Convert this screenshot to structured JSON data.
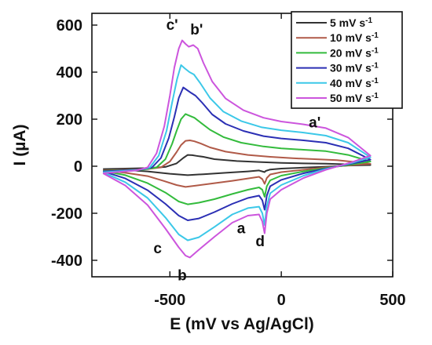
{
  "chart_data": {
    "type": "line",
    "title": "",
    "xlabel": "E (mV vs Ag/AgCl)",
    "ylabel": "I (µA)",
    "xlim": [
      -850,
      500
    ],
    "ylim": [
      -470,
      650
    ],
    "xticks": [
      -500,
      0,
      500
    ],
    "yticks": [
      600,
      400,
      200,
      0,
      -200,
      -400
    ],
    "grid": false,
    "legend_position": "top-right",
    "series": [
      {
        "name": "5 mV s-1",
        "unit_main": "5 mV s",
        "unit_exp": "-1",
        "color": "#333333",
        "forward": [
          [
            -800,
            -12
          ],
          [
            -600,
            -8
          ],
          [
            -520,
            -3
          ],
          [
            -470,
            12
          ],
          [
            -440,
            35
          ],
          [
            -420,
            48
          ],
          [
            -400,
            47
          ],
          [
            -380,
            44
          ],
          [
            -350,
            40
          ],
          [
            -300,
            30
          ],
          [
            -200,
            22
          ],
          [
            -100,
            18
          ],
          [
            0,
            14
          ],
          [
            100,
            12
          ],
          [
            200,
            11
          ],
          [
            300,
            8
          ],
          [
            400,
            5
          ]
        ],
        "reverse": [
          [
            400,
            5
          ],
          [
            300,
            3
          ],
          [
            200,
            -2
          ],
          [
            100,
            -6
          ],
          [
            0,
            -10
          ],
          [
            -50,
            -14
          ],
          [
            -70,
            -20
          ],
          [
            -75,
            -25
          ],
          [
            -100,
            -18
          ],
          [
            -150,
            -22
          ],
          [
            -250,
            -28
          ],
          [
            -350,
            -34
          ],
          [
            -420,
            -38
          ],
          [
            -500,
            -32
          ],
          [
            -600,
            -22
          ],
          [
            -700,
            -16
          ],
          [
            -800,
            -12
          ]
        ]
      },
      {
        "name": "10 mV s-1",
        "unit_main": "10 mV s",
        "unit_exp": "-1",
        "color": "#b05a48",
        "forward": [
          [
            -800,
            -18
          ],
          [
            -600,
            -12
          ],
          [
            -540,
            -5
          ],
          [
            -500,
            20
          ],
          [
            -470,
            60
          ],
          [
            -450,
            90
          ],
          [
            -430,
            108
          ],
          [
            -410,
            110
          ],
          [
            -390,
            106
          ],
          [
            -360,
            96
          ],
          [
            -320,
            80
          ],
          [
            -250,
            62
          ],
          [
            -150,
            48
          ],
          [
            -50,
            40
          ],
          [
            50,
            34
          ],
          [
            150,
            30
          ],
          [
            250,
            26
          ],
          [
            330,
            18
          ],
          [
            400,
            10
          ]
        ],
        "reverse": [
          [
            400,
            10
          ],
          [
            320,
            5
          ],
          [
            200,
            -5
          ],
          [
            100,
            -15
          ],
          [
            0,
            -25
          ],
          [
            -50,
            -35
          ],
          [
            -65,
            -50
          ],
          [
            -75,
            -75
          ],
          [
            -85,
            -55
          ],
          [
            -100,
            -45
          ],
          [
            -150,
            -52
          ],
          [
            -220,
            -62
          ],
          [
            -300,
            -72
          ],
          [
            -380,
            -82
          ],
          [
            -430,
            -88
          ],
          [
            -470,
            -80
          ],
          [
            -530,
            -62
          ],
          [
            -600,
            -42
          ],
          [
            -700,
            -28
          ],
          [
            -800,
            -18
          ]
        ]
      },
      {
        "name": "20 mV s-1",
        "unit_main": "20 mV s",
        "unit_exp": "-1",
        "color": "#33bb3c",
        "forward": [
          [
            -800,
            -20
          ],
          [
            -620,
            -14
          ],
          [
            -560,
            -5
          ],
          [
            -520,
            30
          ],
          [
            -490,
            95
          ],
          [
            -470,
            150
          ],
          [
            -450,
            200
          ],
          [
            -430,
            222
          ],
          [
            -410,
            214
          ],
          [
            -390,
            206
          ],
          [
            -360,
            184
          ],
          [
            -320,
            155
          ],
          [
            -260,
            124
          ],
          [
            -180,
            100
          ],
          [
            -80,
            84
          ],
          [
            0,
            76
          ],
          [
            100,
            70
          ],
          [
            200,
            64
          ],
          [
            300,
            48
          ],
          [
            400,
            20
          ]
        ],
        "reverse": [
          [
            400,
            20
          ],
          [
            320,
            8
          ],
          [
            200,
            -8
          ],
          [
            100,
            -22
          ],
          [
            0,
            -40
          ],
          [
            -50,
            -60
          ],
          [
            -65,
            -85
          ],
          [
            -75,
            -130
          ],
          [
            -85,
            -100
          ],
          [
            -100,
            -90
          ],
          [
            -150,
            -100
          ],
          [
            -220,
            -118
          ],
          [
            -300,
            -140
          ],
          [
            -370,
            -155
          ],
          [
            -420,
            -162
          ],
          [
            -460,
            -150
          ],
          [
            -520,
            -112
          ],
          [
            -600,
            -72
          ],
          [
            -700,
            -38
          ],
          [
            -800,
            -20
          ]
        ]
      },
      {
        "name": "30 mV s-1",
        "unit_main": "30 mV s",
        "unit_exp": "-1",
        "color": "#2b2fb4",
        "forward": [
          [
            -800,
            -22
          ],
          [
            -630,
            -14
          ],
          [
            -580,
            -5
          ],
          [
            -540,
            35
          ],
          [
            -505,
            120
          ],
          [
            -480,
            210
          ],
          [
            -460,
            290
          ],
          [
            -440,
            335
          ],
          [
            -425,
            325
          ],
          [
            -405,
            312
          ],
          [
            -385,
            300
          ],
          [
            -355,
            270
          ],
          [
            -310,
            220
          ],
          [
            -250,
            180
          ],
          [
            -170,
            150
          ],
          [
            -80,
            128
          ],
          [
            0,
            118
          ],
          [
            100,
            110
          ],
          [
            200,
            100
          ],
          [
            300,
            76
          ],
          [
            400,
            28
          ]
        ],
        "reverse": [
          [
            400,
            28
          ],
          [
            320,
            12
          ],
          [
            200,
            -10
          ],
          [
            100,
            -30
          ],
          [
            0,
            -58
          ],
          [
            -50,
            -85
          ],
          [
            -65,
            -125
          ],
          [
            -75,
            -185
          ],
          [
            -85,
            -145
          ],
          [
            -100,
            -125
          ],
          [
            -150,
            -135
          ],
          [
            -220,
            -160
          ],
          [
            -300,
            -195
          ],
          [
            -370,
            -222
          ],
          [
            -420,
            -230
          ],
          [
            -460,
            -210
          ],
          [
            -520,
            -160
          ],
          [
            -600,
            -102
          ],
          [
            -700,
            -52
          ],
          [
            -800,
            -22
          ]
        ]
      },
      {
        "name": "40 mV s-1",
        "unit_main": "40 mV s",
        "unit_exp": "-1",
        "color": "#3cc8e8",
        "forward": [
          [
            -800,
            -26
          ],
          [
            -640,
            -16
          ],
          [
            -590,
            -5
          ],
          [
            -550,
            45
          ],
          [
            -515,
            150
          ],
          [
            -490,
            270
          ],
          [
            -468,
            370
          ],
          [
            -450,
            430
          ],
          [
            -432,
            415
          ],
          [
            -412,
            400
          ],
          [
            -392,
            390
          ],
          [
            -365,
            355
          ],
          [
            -320,
            290
          ],
          [
            -260,
            232
          ],
          [
            -180,
            192
          ],
          [
            -90,
            166
          ],
          [
            0,
            153
          ],
          [
            100,
            143
          ],
          [
            200,
            130
          ],
          [
            300,
            100
          ],
          [
            400,
            38
          ]
        ],
        "reverse": [
          [
            400,
            38
          ],
          [
            320,
            15
          ],
          [
            200,
            -12
          ],
          [
            100,
            -40
          ],
          [
            0,
            -80
          ],
          [
            -50,
            -115
          ],
          [
            -65,
            -170
          ],
          [
            -75,
            -250
          ],
          [
            -85,
            -200
          ],
          [
            -100,
            -172
          ],
          [
            -150,
            -178
          ],
          [
            -220,
            -205
          ],
          [
            -300,
            -258
          ],
          [
            -370,
            -302
          ],
          [
            -420,
            -315
          ],
          [
            -460,
            -290
          ],
          [
            -520,
            -218
          ],
          [
            -600,
            -135
          ],
          [
            -700,
            -68
          ],
          [
            -800,
            -26
          ]
        ]
      },
      {
        "name": "50 mV s-1",
        "unit_main": "50 mV s",
        "unit_exp": "-1",
        "color": "#cc55dd",
        "forward": [
          [
            -800,
            -30
          ],
          [
            -650,
            -18
          ],
          [
            -600,
            -5
          ],
          [
            -560,
            55
          ],
          [
            -525,
            170
          ],
          [
            -500,
            300
          ],
          [
            -480,
            420
          ],
          [
            -460,
            500
          ],
          [
            -445,
            535
          ],
          [
            -430,
            520
          ],
          [
            -415,
            508
          ],
          [
            -395,
            515
          ],
          [
            -375,
            500
          ],
          [
            -350,
            440
          ],
          [
            -310,
            360
          ],
          [
            -250,
            288
          ],
          [
            -170,
            238
          ],
          [
            -80,
            206
          ],
          [
            0,
            190
          ],
          [
            100,
            178
          ],
          [
            200,
            162
          ],
          [
            300,
            122
          ],
          [
            400,
            45
          ]
        ],
        "reverse": [
          [
            400,
            45
          ],
          [
            320,
            18
          ],
          [
            200,
            -15
          ],
          [
            100,
            -50
          ],
          [
            0,
            -100
          ],
          [
            -50,
            -140
          ],
          [
            -65,
            -200
          ],
          [
            -75,
            -285
          ],
          [
            -85,
            -235
          ],
          [
            -100,
            -205
          ],
          [
            -150,
            -210
          ],
          [
            -220,
            -240
          ],
          [
            -300,
            -300
          ],
          [
            -370,
            -355
          ],
          [
            -410,
            -388
          ],
          [
            -430,
            -380
          ],
          [
            -460,
            -345
          ],
          [
            -520,
            -265
          ],
          [
            -600,
            -165
          ],
          [
            -700,
            -82
          ],
          [
            -800,
            -30
          ]
        ]
      }
    ],
    "annotations": [
      {
        "text": "c'",
        "x": -490,
        "y": 580
      },
      {
        "text": "b'",
        "x": -380,
        "y": 560
      },
      {
        "text": "a'",
        "x": 150,
        "y": 165
      },
      {
        "text": "a",
        "x": -180,
        "y": -285
      },
      {
        "text": "d",
        "x": -95,
        "y": -340
      },
      {
        "text": "c",
        "x": -555,
        "y": -370
      },
      {
        "text": "b",
        "x": -445,
        "y": -485
      }
    ]
  }
}
